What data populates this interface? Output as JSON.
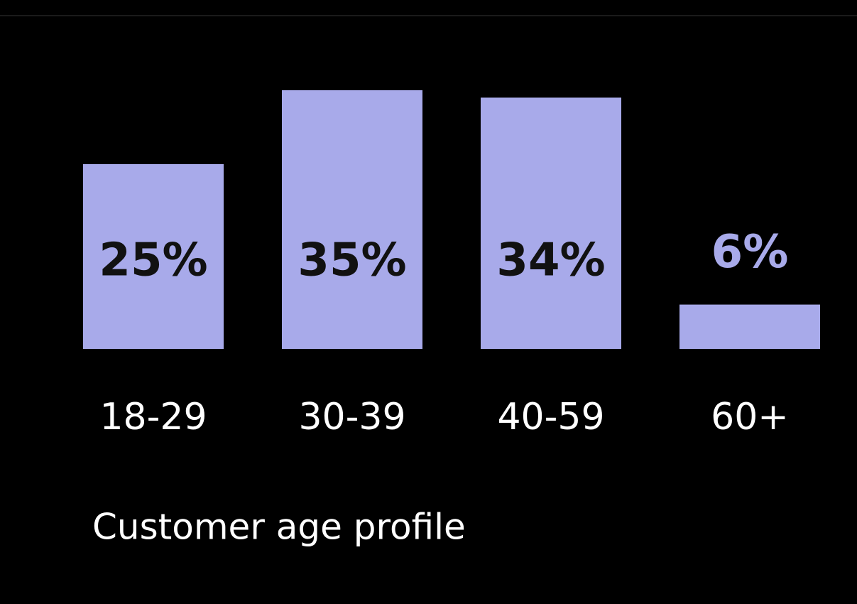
{
  "chart_data": {
    "type": "bar",
    "title": "Customer age profile",
    "categories": [
      "18-29",
      "30-39",
      "40-59",
      "60+"
    ],
    "values": [
      25,
      35,
      34,
      6
    ],
    "value_labels": [
      "25%",
      "35%",
      "34%",
      "6%"
    ],
    "color": "#a8aaea"
  }
}
